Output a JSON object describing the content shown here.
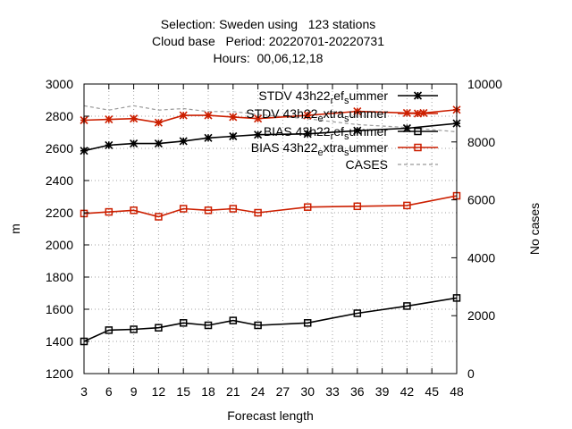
{
  "chart_data": {
    "type": "line",
    "title_lines": [
      "Selection: Sweden using   123 stations",
      "Cloud base   Period: 20220701-20220731",
      "Hours:  00,06,12,18"
    ],
    "xlabel": "Forecast length",
    "ylabel": "m",
    "y2label": "No cases",
    "xlim": [
      3,
      48
    ],
    "ylim": [
      1200,
      3000
    ],
    "y2lim": [
      0,
      10000
    ],
    "x_ticks": [
      3,
      6,
      9,
      12,
      15,
      18,
      21,
      24,
      27,
      30,
      33,
      36,
      39,
      42,
      45,
      48
    ],
    "y_ticks": [
      1200,
      1400,
      1600,
      1800,
      2000,
      2200,
      2400,
      2600,
      2800,
      3000
    ],
    "y2_ticks": [
      0,
      2000,
      4000,
      6000,
      8000,
      10000
    ],
    "grid": true,
    "legend_position": "top-right",
    "series": [
      {
        "name": "STDV 43h22_ref_summer",
        "legend_parts": [
          "STDV 43h22",
          "r",
          "ef",
          "s",
          "ummer"
        ],
        "color": "#000000",
        "marker": "star",
        "axis": "y",
        "x": [
          3,
          6,
          9,
          12,
          15,
          18,
          21,
          24,
          30,
          36,
          42,
          48
        ],
        "values": [
          2585,
          2620,
          2630,
          2630,
          2645,
          2665,
          2675,
          2685,
          2690,
          2710,
          2725,
          2755
        ]
      },
      {
        "name": "STDV 43h22_extra_summer",
        "legend_parts": [
          "STDV 43h22",
          "e",
          "xtra",
          "s",
          "ummer"
        ],
        "color": "#cc1f00",
        "marker": "star",
        "axis": "y",
        "x": [
          3,
          6,
          9,
          12,
          15,
          18,
          21,
          24,
          30,
          36,
          42,
          44,
          48
        ],
        "values": [
          2775,
          2780,
          2785,
          2760,
          2805,
          2805,
          2795,
          2785,
          2805,
          2830,
          2820,
          2820,
          2840
        ]
      },
      {
        "name": "BIAS 43h22_ref_summer",
        "legend_parts": [
          "BIAS 43h22",
          "r",
          "ef",
          "s",
          "ummer"
        ],
        "color": "#000000",
        "marker": "square",
        "axis": "y",
        "x": [
          3,
          6,
          9,
          12,
          15,
          18,
          21,
          24,
          30,
          36,
          42,
          48
        ],
        "values": [
          1400,
          1470,
          1475,
          1485,
          1515,
          1500,
          1530,
          1500,
          1515,
          1575,
          1620,
          1670
        ]
      },
      {
        "name": "BIAS 43h22_extra_summer",
        "legend_parts": [
          "BIAS 43h22",
          "e",
          "xtra",
          "s",
          "ummer"
        ],
        "color": "#cc1f00",
        "marker": "square",
        "axis": "y",
        "x": [
          3,
          6,
          9,
          12,
          15,
          18,
          21,
          24,
          30,
          36,
          42,
          48
        ],
        "values": [
          2195,
          2205,
          2215,
          2175,
          2225,
          2215,
          2225,
          2200,
          2235,
          2240,
          2245,
          2305
        ]
      },
      {
        "name": "CASES",
        "legend_parts": [
          "CASES"
        ],
        "color": "#999999",
        "marker": "none",
        "dashed": true,
        "axis": "y2",
        "x": [
          3,
          6,
          9,
          12,
          15,
          18,
          21,
          24,
          30,
          36,
          42,
          48
        ],
        "values": [
          9250,
          9100,
          9250,
          9100,
          9150,
          9050,
          9050,
          8950,
          8800,
          8600,
          8500,
          8350
        ]
      }
    ]
  }
}
